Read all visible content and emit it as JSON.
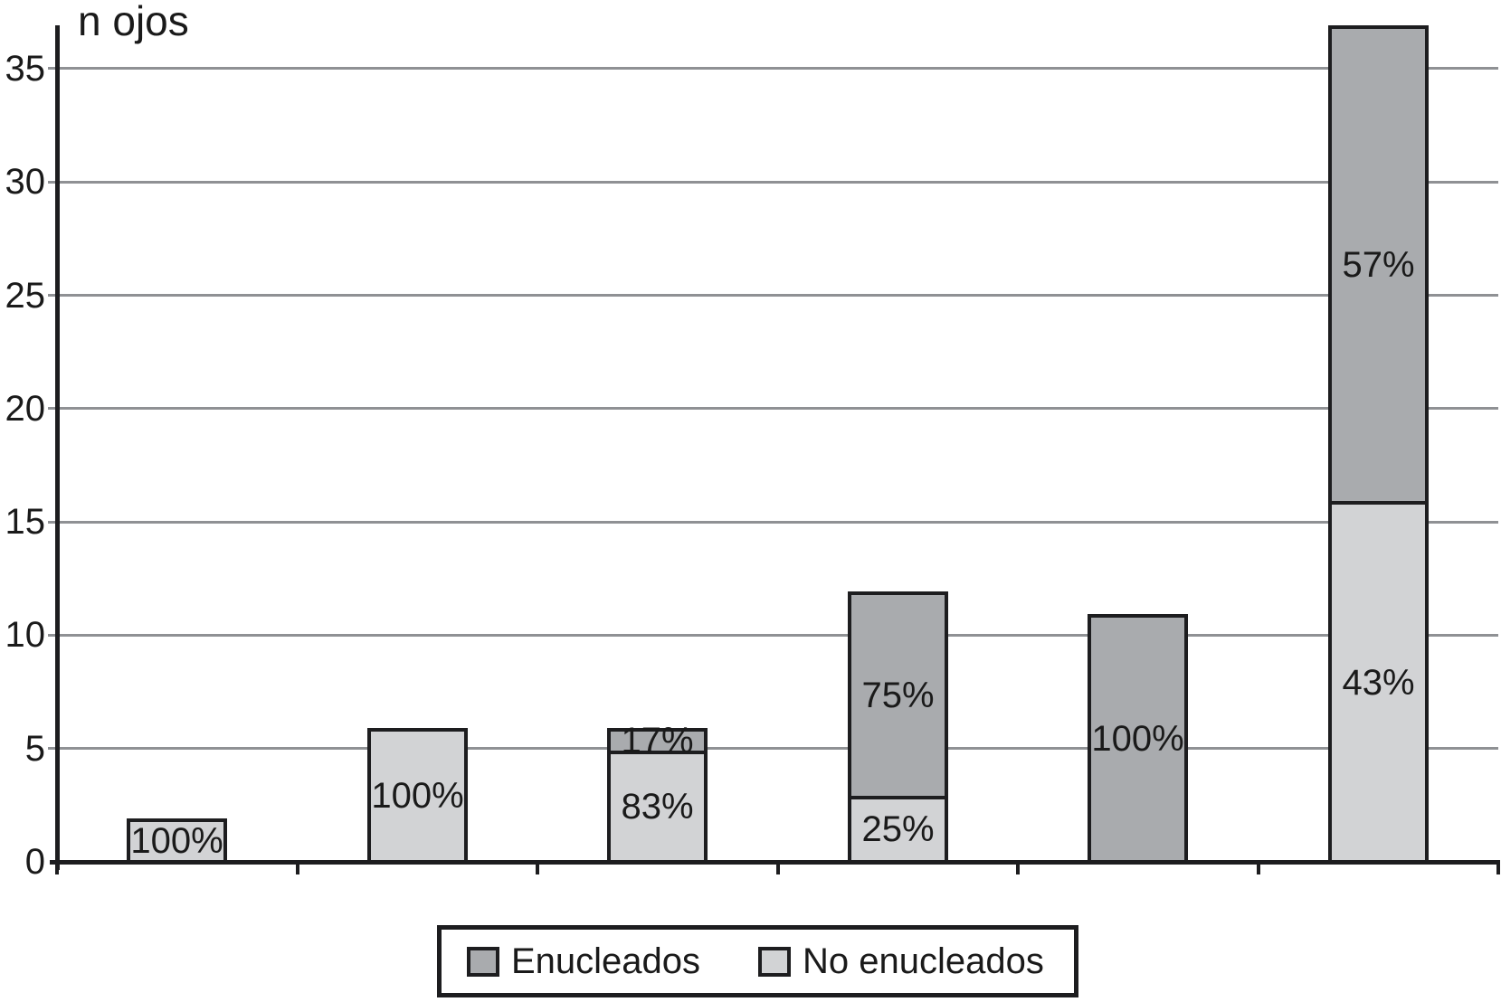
{
  "title": "n ojos",
  "colors": {
    "enucleados": "#a9abae",
    "no_enucleados": "#d2d3d5",
    "gridline": "#8f9194",
    "axis": "#1d1d1f",
    "text": "#1a1a1a",
    "background": "#ffffff"
  },
  "legend": {
    "items": [
      {
        "label": "Enucleados",
        "color_key": "enucleados"
      },
      {
        "label": "No enucleados",
        "color_key": "no_enucleados"
      }
    ]
  },
  "chart_data": {
    "type": "bar",
    "stacked": true,
    "ylabel": "n ojos",
    "ylim": [
      0,
      35
    ],
    "yticks": [
      0,
      5,
      10,
      15,
      20,
      25,
      30,
      35
    ],
    "grid": true,
    "x_category_labels_visible": false,
    "num_categories": 6,
    "legend_entries": [
      "Enucleados",
      "No enucleados"
    ],
    "legend_position": "bottom",
    "series": [
      {
        "name": "No enucleados",
        "color_key": "no_enucleados",
        "values": [
          2,
          6,
          5,
          3,
          0,
          16
        ]
      },
      {
        "name": "Enucleados",
        "color_key": "enucleados",
        "values": [
          0,
          0,
          1,
          9,
          11,
          21
        ]
      }
    ],
    "bars": [
      {
        "segments": [
          {
            "series": "No enucleados",
            "value": 2,
            "label": "100%"
          }
        ]
      },
      {
        "segments": [
          {
            "series": "No enucleados",
            "value": 6,
            "label": "100%"
          }
        ]
      },
      {
        "segments": [
          {
            "series": "No enucleados",
            "value": 5,
            "label": "83%"
          },
          {
            "series": "Enucleados",
            "value": 1,
            "label": "17%"
          }
        ]
      },
      {
        "segments": [
          {
            "series": "No enucleados",
            "value": 3,
            "label": "25%"
          },
          {
            "series": "Enucleados",
            "value": 9,
            "label": "75%"
          }
        ]
      },
      {
        "segments": [
          {
            "series": "Enucleados",
            "value": 11,
            "label": "100%"
          }
        ]
      },
      {
        "segments": [
          {
            "series": "No enucleados",
            "value": 16,
            "label": "43%"
          },
          {
            "series": "Enucleados",
            "value": 21,
            "label": "57%"
          }
        ]
      }
    ]
  }
}
